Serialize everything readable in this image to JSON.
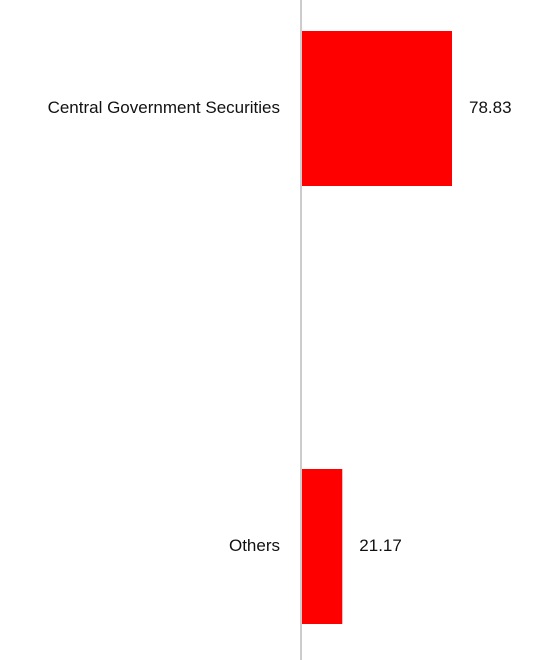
{
  "chart_data": {
    "type": "bar",
    "orientation": "horizontal",
    "categories": [
      "Central Government Securities",
      "Others"
    ],
    "values": [
      78.83,
      21.17
    ],
    "value_labels": [
      "78.83",
      "21.17"
    ],
    "xlim": [
      0,
      100
    ],
    "bar_color": "#ff0000",
    "axis_color": "#cccccc",
    "grid": false
  }
}
